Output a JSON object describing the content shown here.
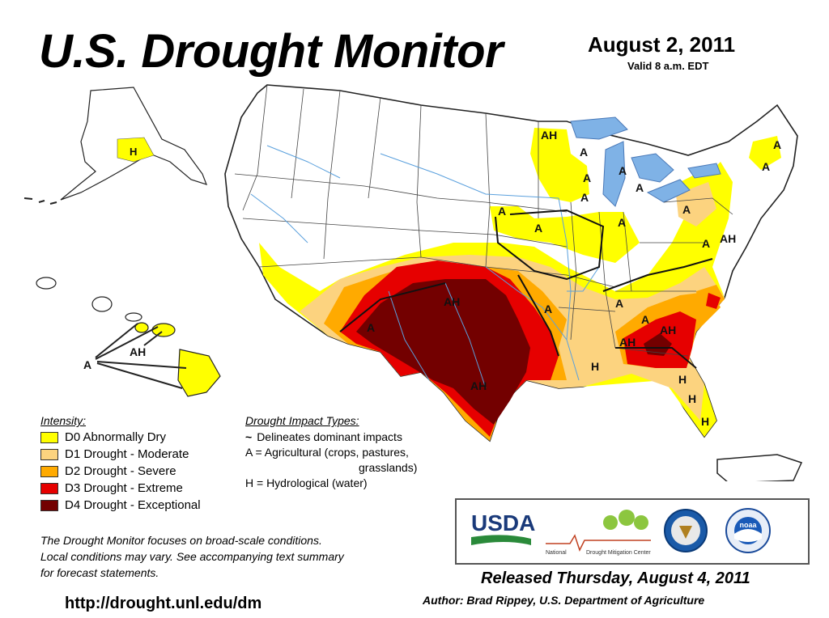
{
  "header": {
    "title": "U.S. Drought Monitor",
    "date": "August 2, 2011",
    "valid": "Valid 8 a.m. EDT"
  },
  "legend": {
    "intensity_title": "Intensity:",
    "items": [
      {
        "label": "D0 Abnormally Dry",
        "color": "#ffff00"
      },
      {
        "label": "D1 Drought - Moderate",
        "color": "#fcd37f"
      },
      {
        "label": "D2 Drought - Severe",
        "color": "#ffaa00"
      },
      {
        "label": "D3 Drought - Extreme",
        "color": "#e60000"
      },
      {
        "label": "D4 Drought - Exceptional",
        "color": "#730000"
      }
    ],
    "impact_title": "Drought Impact Types:",
    "impact_symbol": "~",
    "impact_delineates": "Delineates dominant impacts",
    "impact_a_line1": "A = Agricultural (crops, pastures,",
    "impact_a_line2": "grasslands)",
    "impact_h": "H = Hydrological (water)"
  },
  "map_labels": {
    "alaska": [
      "H"
    ],
    "hawaii": [
      "AH",
      "A"
    ],
    "conus": [
      "AH",
      "A",
      "A",
      "A",
      "A",
      "A",
      "A",
      "A",
      "A",
      "A",
      "AH",
      "A",
      "A",
      "A",
      "A",
      "AH",
      "AH",
      "AH",
      "H",
      "H",
      "AH",
      "H",
      "H",
      "A",
      "A",
      "A"
    ]
  },
  "note": {
    "line1": "The Drought Monitor focuses on broad-scale conditions.",
    "line2": "Local conditions may vary. See accompanying text summary",
    "line3": "for forecast statements."
  },
  "url": "http://drought.unl.edu/dm",
  "logos": {
    "usda": "USDA",
    "ndmc_left": "National",
    "ndmc_right": "Drought Mitigation Center",
    "noaa": "noaa"
  },
  "footer": {
    "released": "Released Thursday, August 4, 2011",
    "author": "Author: Brad Rippey, U.S. Department of Agriculture"
  }
}
